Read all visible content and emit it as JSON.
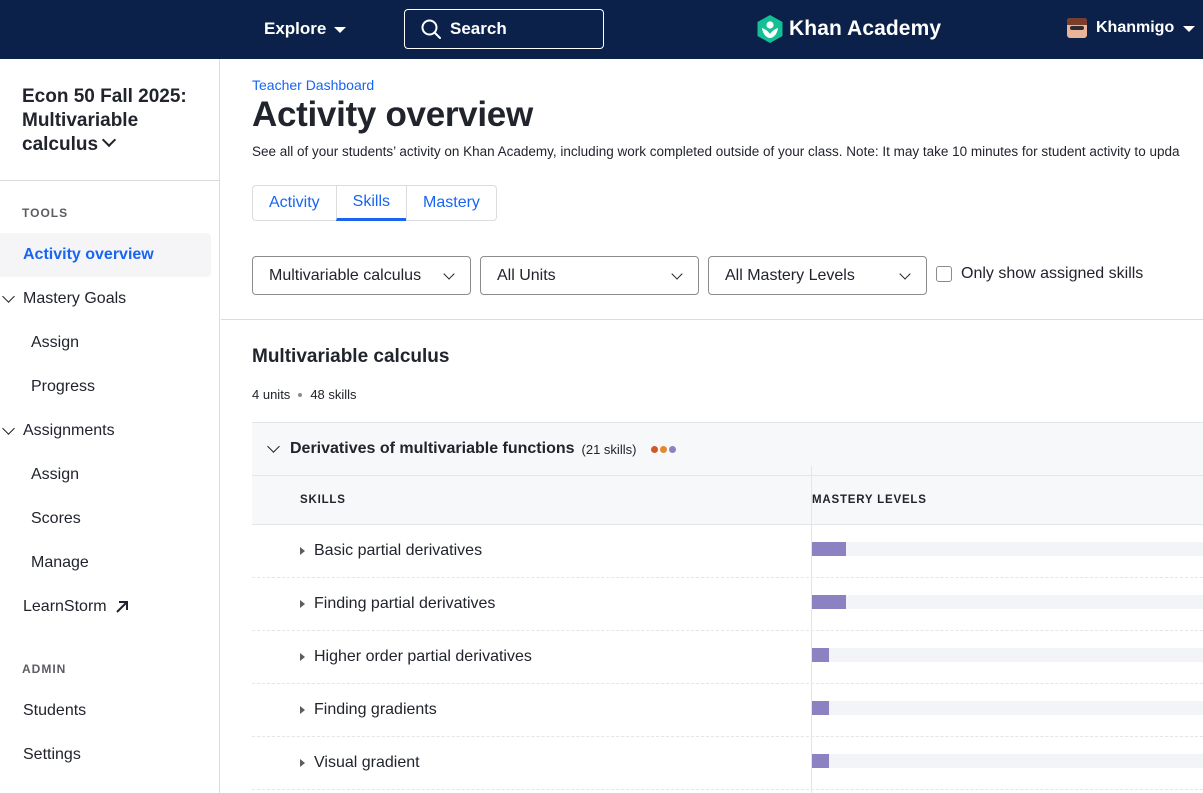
{
  "topbar": {
    "explore_label": "Explore",
    "search_label": "Search",
    "brand": "Khan Academy",
    "user_label": "Khanmigo"
  },
  "sidebar": {
    "class_title": "Econ 50 Fall 2025: Multivariable calculus",
    "tools_heading": "TOOLS",
    "admin_heading": "ADMIN",
    "items": {
      "activity_overview": "Activity overview",
      "mastery_goals": "Mastery Goals",
      "mastery_assign": "Assign",
      "mastery_progress": "Progress",
      "assignments": "Assignments",
      "assignments_assign": "Assign",
      "assignments_scores": "Scores",
      "assignments_manage": "Manage",
      "learnstorm": "LearnStorm",
      "students": "Students",
      "settings": "Settings"
    }
  },
  "main": {
    "breadcrumb": "Teacher Dashboard",
    "title": "Activity overview",
    "description": "See all of your students’ activity on Khan Academy, including work completed outside of your class. Note: It may take 10 minutes for student activity to upda",
    "tabs": [
      "Activity",
      "Skills",
      "Mastery"
    ],
    "active_tab": "Skills",
    "filters": {
      "course": "Multivariable calculus",
      "units": "All Units",
      "mastery": "All Mastery Levels",
      "assigned_only_label": "Only show assigned skills",
      "assigned_only_checked": false
    },
    "course": {
      "title": "Multivariable calculus",
      "units": "4 units",
      "skills": "48 skills"
    },
    "unit": {
      "name": "Derivatives of multivariable functions",
      "count": "(21 skills)",
      "dot_colors": [
        "#d4572a",
        "#e08b2e",
        "#8d82c1"
      ]
    },
    "table": {
      "col_skills": "SKILLS",
      "col_mastery": "MASTERY LEVELS",
      "bar_color": "#8d82c1",
      "rows": [
        {
          "skill": "Basic partial derivatives",
          "mastery_fraction": 0.087
        },
        {
          "skill": "Finding partial derivatives",
          "mastery_fraction": 0.087
        },
        {
          "skill": "Higher order partial derivatives",
          "mastery_fraction": 0.043
        },
        {
          "skill": "Finding gradients",
          "mastery_fraction": 0.043
        },
        {
          "skill": "Visual gradient",
          "mastery_fraction": 0.043
        }
      ]
    }
  }
}
